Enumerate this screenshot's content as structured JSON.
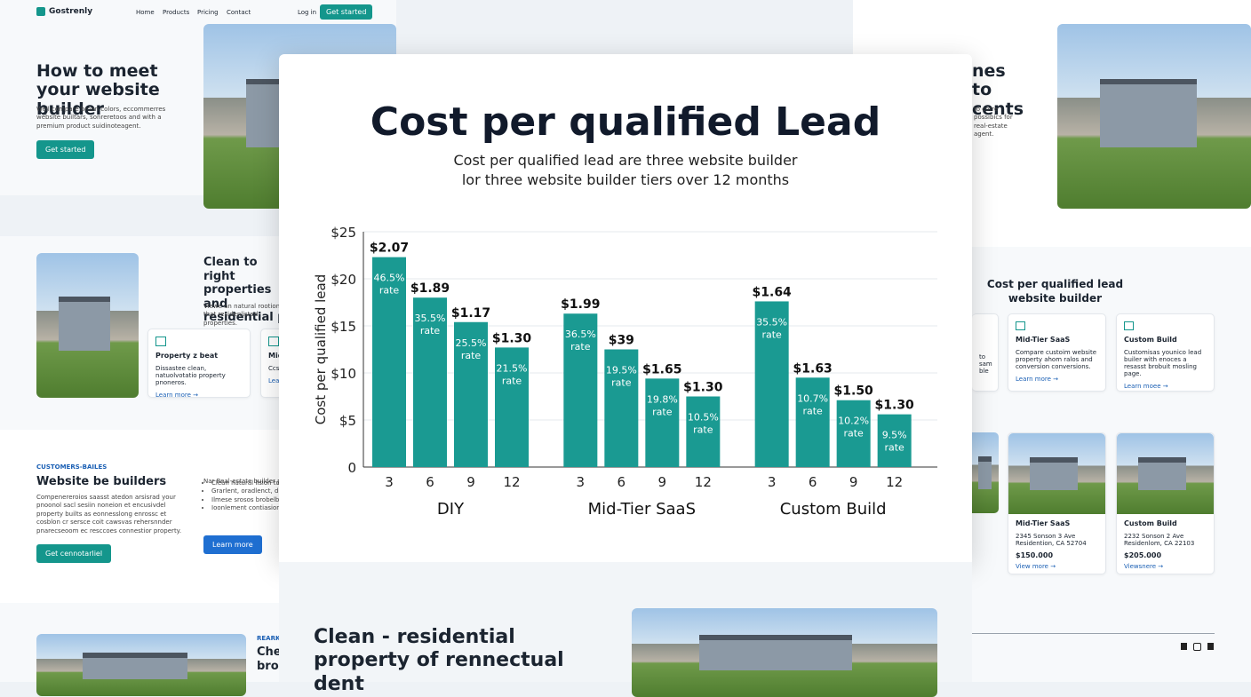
{
  "nav": {
    "brand": "Gostrenly",
    "links": [
      "Home",
      "Products",
      "Pricing",
      "Contact"
    ],
    "login": "Log in",
    "cta": "Get started"
  },
  "hero": {
    "title": "How to meet your website builder",
    "body": "Well compare broan colors, eccommerres website builtars, sonreretoos and with a premium product suidinoteagent.",
    "cta": "Get started"
  },
  "section2": {
    "title": "Clean to right properties and residential pr",
    "body": "Viewe an natural rootion that residenlisted properties.",
    "cards": [
      {
        "title": "Property z beat",
        "body": "Dissastee clean, natuolvotatio property pnoneros.",
        "link": "Learn more →"
      },
      {
        "title": "Mid",
        "body": "Ccs",
        "link": "Lea"
      }
    ]
  },
  "section3": {
    "eyebrow": "CUSTOMERS-BAILES",
    "title": "Website be builders",
    "body": "Compenereroios saasst atedon arsisrad your pnoonol sacl sesiin noneion et encusivdel property builts as eonnesslong enrossc et cosblon cr sersce coit cawsvas rehersnnder pnarecseoom ec resccoes connestior property.",
    "cta": "Get cennotarliel",
    "list_intro": "Nar Real-estate builder ps",
    "list": [
      "Clean natural lision toc",
      "Grarlent, oradlenct, drop",
      "Ilmese srosos brobelbon",
      "Ioonlement contiasion."
    ],
    "link": "Learn more"
  },
  "section4": {
    "eyebrow": "REARKI",
    "title": "Che brou"
  },
  "right": {
    "hero_title": "nes to cents",
    "hero_body": "to corre possibics for real-estate agent.",
    "panel_title": "Cost per qualified lead website builder",
    "cards": [
      {
        "title": "Mid-Tier SaaS",
        "body": "Compare custoim website property ahom ralos and conversion conversions.",
        "link": "Learn more →"
      },
      {
        "title": "Custom Build",
        "body": "Customisas younico lead builer with enoces a resasst brobuit mosling page.",
        "link": "Learn moee →"
      }
    ],
    "stub_body": "to sam ble",
    "listings": [
      {
        "title": "Mid-Tier SaaS",
        "address": "2345 Sonson 3 Ave Residention, CA 52704",
        "price": "$150.000",
        "link": "View more →"
      },
      {
        "title": "Custom Build",
        "address": "2232 Sonson 2 Ave Residenlom, CA 22103",
        "price": "$205.000",
        "link": "Viewsnere →"
      }
    ]
  },
  "bottom": {
    "title": "Clean - residential property of rennectual dent"
  },
  "chart_data": {
    "type": "grouped_bar",
    "title": "Cost per qualified Lead",
    "subtitle": "Cost per qualified lead are three website builder lor three website builder tiers over 12 months",
    "y_label": "Cost per qualified lead",
    "color": "#1a9a92",
    "grid": true,
    "ylim": [
      0,
      25
    ],
    "yticks": [
      0,
      {
        "value": 5,
        "label": "$5"
      },
      {
        "value": 10,
        "label": "$10"
      },
      {
        "value": 15,
        "label": "$15"
      },
      {
        "value": 20,
        "label": "$20"
      },
      {
        "value": 25,
        "label": "$25"
      }
    ],
    "groups": [
      {
        "name": "DIY",
        "categories": [
          "3",
          "6",
          "9",
          "12"
        ],
        "values": [
          22.3,
          18.0,
          15.4,
          12.7
        ],
        "price_labels": [
          "$2.07",
          "$1.89",
          "$1.17",
          "$1.30"
        ],
        "rate_labels": [
          "46.5% rate",
          "35.5% rate",
          "25.5% rate",
          "21.5% rate"
        ]
      },
      {
        "name": "Mid-Tier SaaS",
        "categories": [
          "3",
          "6",
          "9",
          "12"
        ],
        "values": [
          16.3,
          12.5,
          9.4,
          7.5
        ],
        "price_labels": [
          "$1.99",
          "$39",
          "$1.65",
          "$1.30"
        ],
        "rate_labels": [
          "36.5% rate",
          "19.5% rate",
          "19.8% rate",
          "10.5% rate"
        ]
      },
      {
        "name": "Custom Build",
        "categories": [
          "3",
          "6",
          "9",
          "12"
        ],
        "values": [
          17.6,
          9.5,
          7.1,
          5.6
        ],
        "price_labels": [
          "$1.64",
          "$1.63",
          "$1.50",
          "$1.30"
        ],
        "rate_labels": [
          "35.5% rate",
          "10.7% rate",
          "10.2% rate",
          "9.5% rate"
        ]
      }
    ]
  }
}
